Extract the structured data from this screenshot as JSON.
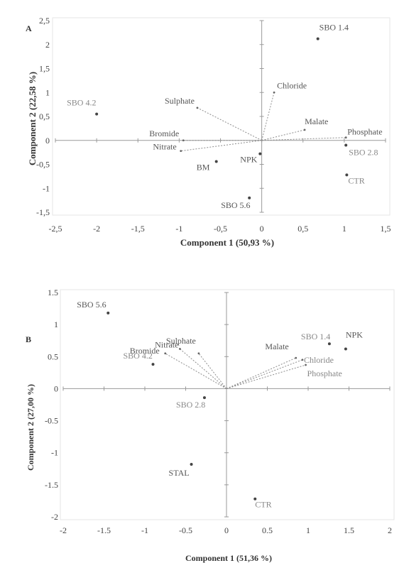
{
  "chart_data": [
    {
      "type": "biplot",
      "panel_label": "A",
      "xlabel": "Component 1 (50,93 %)",
      "ylabel": "Component 2 (22,58 %)",
      "xlim": [
        -2.5,
        1.5
      ],
      "ylim": [
        -1.5,
        2.5
      ],
      "xticks": [
        "-2,5",
        "-2",
        "-1,5",
        "-1",
        "-0,5",
        "0",
        "0,5",
        "1",
        "1,5"
      ],
      "yticks": [
        "2,5",
        "2",
        "1,5",
        "1",
        "0,5",
        "0",
        "-0,5",
        "-1",
        "-1,5"
      ],
      "xtick_values": [
        -2.5,
        -2,
        -1.5,
        -1,
        -0.5,
        0,
        0.5,
        1,
        1.5
      ],
      "ytick_values": [
        2.5,
        2,
        1.5,
        1,
        0.5,
        0,
        -0.5,
        -1,
        -1.5
      ],
      "points": [
        {
          "label": "SBO 1.4",
          "x": 0.68,
          "y": 2.12
        },
        {
          "label": "SBO 4.2",
          "x": -2.0,
          "y": 0.55
        },
        {
          "label": "SBO 2.8",
          "x": 1.02,
          "y": -0.1
        },
        {
          "label": "CTR",
          "x": 1.03,
          "y": -0.72
        },
        {
          "label": "NPK",
          "x": -0.02,
          "y": -0.28
        },
        {
          "label": "BM",
          "x": -0.55,
          "y": -0.44
        },
        {
          "label": "SBO 5.6",
          "x": -0.15,
          "y": -1.2
        }
      ],
      "vectors": [
        {
          "label": "Chloride",
          "x": 0.15,
          "y": 1.0
        },
        {
          "label": "Sulphate",
          "x": -0.78,
          "y": 0.68
        },
        {
          "label": "Malate",
          "x": 0.52,
          "y": 0.22
        },
        {
          "label": "Phosphate",
          "x": 1.02,
          "y": 0.06
        },
        {
          "label": "Bromide",
          "x": -0.95,
          "y": 0.0
        },
        {
          "label": "Nitrate",
          "x": -0.98,
          "y": -0.22
        }
      ]
    },
    {
      "type": "biplot",
      "panel_label": "B",
      "xlabel": "Component 1 (51,36 %)",
      "ylabel": "Component 2 (27,00 %)",
      "xlim": [
        -2,
        2
      ],
      "ylim": [
        -2,
        1.5
      ],
      "xticks": [
        "-2",
        "-1.5",
        "-1",
        "-0.5",
        "0",
        "0.5",
        "1",
        "1.5",
        "2"
      ],
      "yticks": [
        "1.5",
        "1",
        "0.5",
        "0",
        "-0.5",
        "-1",
        "-1.5",
        "-2"
      ],
      "xtick_values": [
        -2,
        -1.5,
        -1,
        -0.5,
        0,
        0.5,
        1,
        1.5,
        2
      ],
      "ytick_values": [
        1.5,
        1,
        0.5,
        0,
        -0.5,
        -1,
        -1.5,
        -2
      ],
      "points": [
        {
          "label": "SBO 5.6",
          "x": -1.45,
          "y": 1.18
        },
        {
          "label": "SBO 4.2",
          "x": -0.9,
          "y": 0.38
        },
        {
          "label": "SBO 1.4",
          "x": 1.26,
          "y": 0.7
        },
        {
          "label": "NPK",
          "x": 1.46,
          "y": 0.62
        },
        {
          "label": "SBO 2.8",
          "x": -0.27,
          "y": -0.14
        },
        {
          "label": "STAL",
          "x": -0.43,
          "y": -1.18
        },
        {
          "label": "CTR",
          "x": 0.35,
          "y": -1.72
        }
      ],
      "vectors": [
        {
          "label": "Sulphate",
          "x": -0.34,
          "y": 0.55
        },
        {
          "label": "Nitrate",
          "x": -0.57,
          "y": 0.62
        },
        {
          "label": "Bromide",
          "x": -0.75,
          "y": 0.55
        },
        {
          "label": "Malate",
          "x": 0.85,
          "y": 0.48
        },
        {
          "label": "Chloride",
          "x": 0.93,
          "y": 0.45
        },
        {
          "label": "Phosphate",
          "x": 0.97,
          "y": 0.37
        }
      ]
    }
  ]
}
